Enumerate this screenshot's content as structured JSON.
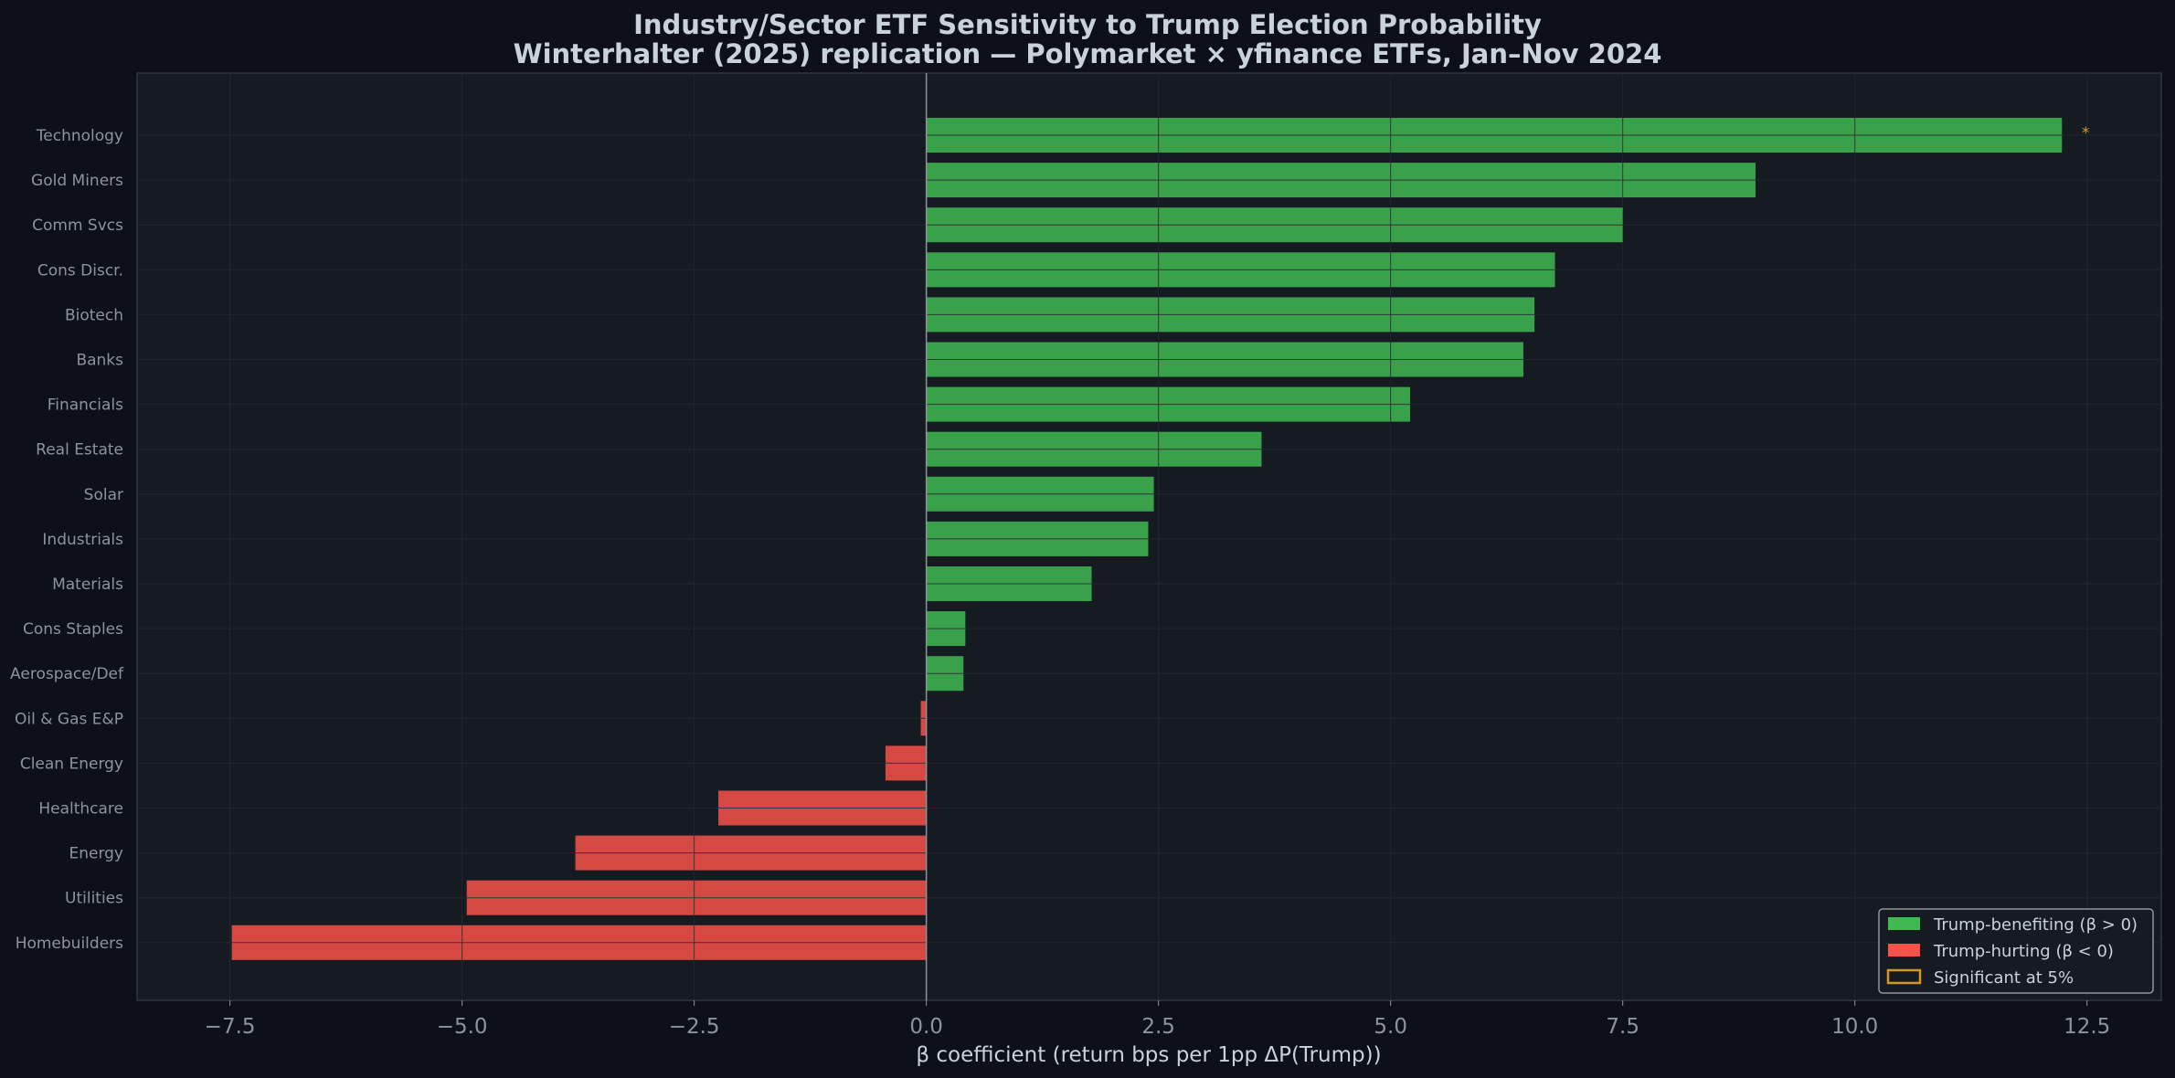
{
  "chart_data": {
    "type": "bar",
    "orientation": "horizontal",
    "title": "Industry/Sector ETF Sensitivity to Trump Election Probability",
    "subtitle": "Winterhalter (2025) replication — Polymarket × yfinance ETFs, Jan–Nov 2024",
    "xlabel": "β coefficient (return bps per 1pp ΔP(Trump))",
    "xlim": [
      -8.5,
      13.3
    ],
    "xticks": [
      "−7.5",
      "−5.0",
      "−2.5",
      "0.0",
      "2.5",
      "5.0",
      "7.5",
      "10.0",
      "12.5"
    ],
    "xtick_values": [
      -7.5,
      -5.0,
      -2.5,
      0.0,
      2.5,
      5.0,
      7.5,
      10.0,
      12.5
    ],
    "grid": true,
    "legend_position": "lower-right",
    "categories": [
      "Technology",
      "Gold Miners",
      "Comm Svcs",
      "Cons Discr.",
      "Biotech",
      "Banks",
      "Financials",
      "Real Estate",
      "Solar",
      "Industrials",
      "Materials",
      "Cons Staples",
      "Aerospace/Def",
      "Oil & Gas E&P",
      "Clean Energy",
      "Healthcare",
      "Energy",
      "Utilities",
      "Homebuilders"
    ],
    "values": [
      12.23,
      8.93,
      7.5,
      6.77,
      6.55,
      6.43,
      5.21,
      3.61,
      2.45,
      2.39,
      1.78,
      0.42,
      0.4,
      -0.06,
      -0.44,
      -2.24,
      -3.78,
      -4.95,
      -7.48
    ],
    "significant": [
      true,
      false,
      false,
      false,
      false,
      false,
      false,
      false,
      false,
      false,
      false,
      false,
      false,
      false,
      false,
      false,
      false,
      false,
      false
    ],
    "significance_marker": "*",
    "colors": {
      "positive": "#3fb950",
      "negative": "#f85149",
      "significant": "#d29922",
      "background": "#161b22",
      "page": "#0d1117"
    },
    "legend": [
      "Trump-benefiting (β > 0)",
      "Trump-hurting (β < 0)",
      "Significant at 5%"
    ]
  }
}
